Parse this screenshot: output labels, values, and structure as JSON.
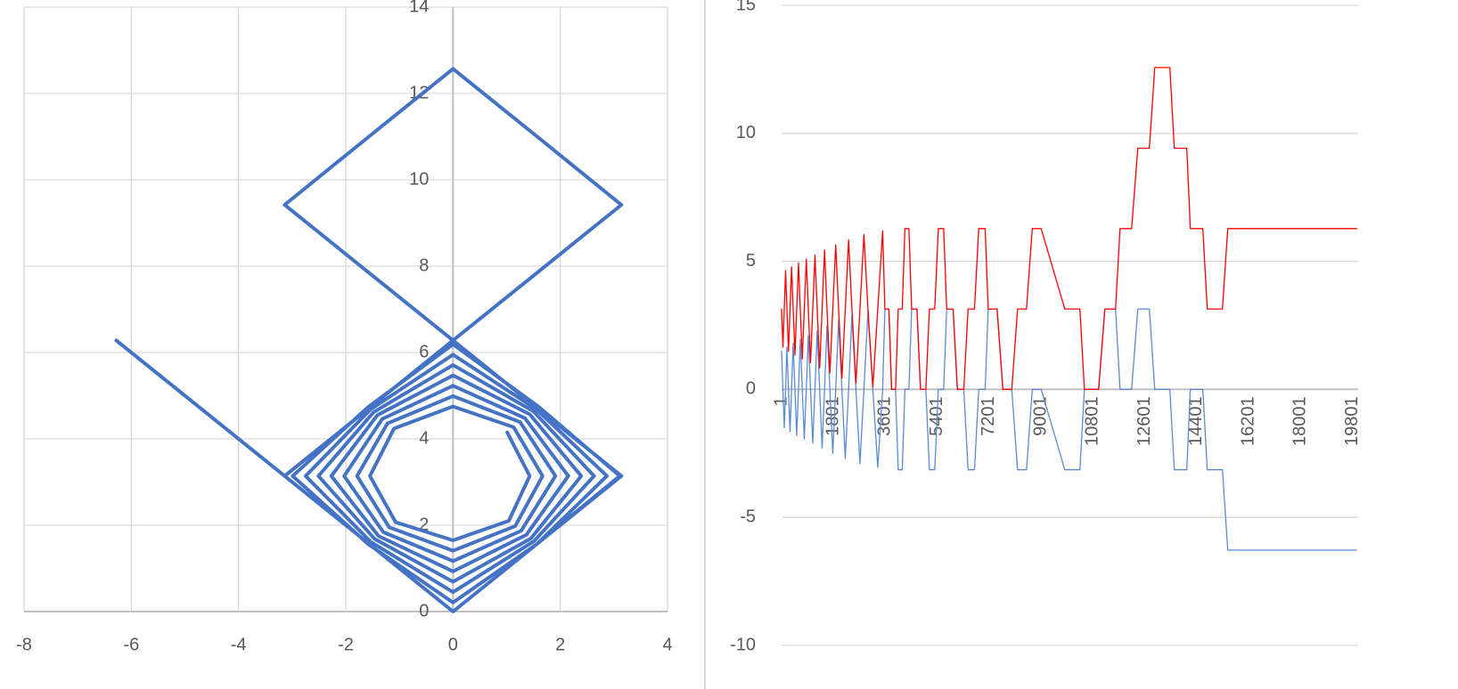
{
  "chart_data": [
    {
      "type": "scatter",
      "x": [
        1.01,
        1.43,
        1.04,
        0,
        -1.07,
        -1.55,
        -1.1,
        0,
        1.13,
        1.67,
        1.16,
        0,
        -1.19,
        -1.79,
        -1.22,
        0,
        1.25,
        1.91,
        1.27,
        0,
        -1.3,
        -2.03,
        -1.32,
        0,
        1.34,
        2.15,
        1.37,
        0,
        -1.39,
        -2.27,
        -1.41,
        0,
        1.43,
        2.39,
        1.45,
        0,
        -1.46,
        -2.51,
        -1.48,
        0,
        1.5,
        2.63,
        1.51,
        0,
        -1.53,
        -2.75,
        -1.54,
        0,
        1.55,
        2.87,
        1.57,
        0,
        -1.58,
        -2.99,
        -1.59,
        0,
        1.6,
        3.11,
        1.57,
        0,
        -1.57,
        -3.14,
        -1.57,
        0,
        1.57,
        3.14,
        1.57,
        0,
        -1.57,
        -3.14,
        -1.57,
        0,
        1.57,
        3.14,
        1.57,
        0,
        -1.57,
        -3.14,
        -4.71,
        -6.28
      ],
      "series": [
        {
          "color": "#4472c4",
          "values": [
            4.15,
            3.14,
            2.1,
            1.65,
            2.07,
            3.14,
            4.24,
            4.75,
            4.27,
            3.14,
            1.98,
            1.41,
            1.95,
            3.14,
            4.36,
            4.99,
            4.39,
            3.14,
            1.87,
            1.17,
            1.84,
            3.14,
            4.46,
            5.23,
            4.48,
            3.14,
            1.78,
            0.93,
            1.75,
            3.14,
            4.55,
            5.47,
            4.57,
            3.14,
            1.69,
            0.69,
            1.68,
            3.14,
            4.62,
            5.71,
            4.64,
            3.14,
            1.63,
            0.45,
            1.61,
            3.14,
            4.68,
            5.95,
            4.69,
            3.14,
            1.57,
            0.21,
            1.56,
            3.14,
            4.73,
            6.19,
            4.74,
            3.14,
            1.57,
            0,
            1.57,
            3.14,
            4.71,
            6.28,
            7.85,
            9.42,
            11,
            12.57,
            11,
            9.42,
            7.85,
            6.28,
            4.71,
            3.14,
            1.57,
            0,
            1.57,
            3.14,
            4.71,
            6.28
          ]
        }
      ],
      "xlim": [
        -8,
        4
      ],
      "xticks": [
        -8,
        -6,
        -4,
        -2,
        0,
        2,
        4
      ],
      "ylim": [
        0,
        14
      ],
      "yticks": [
        0,
        2,
        4,
        6,
        8,
        10,
        12,
        14
      ],
      "grid": true
    },
    {
      "type": "line",
      "x": [
        1,
        47,
        94,
        140,
        186,
        240,
        294,
        348,
        403,
        464,
        526,
        588,
        650,
        719,
        789,
        858,
        928,
        1005,
        1082,
        1159,
        1237,
        1322,
        1407,
        1492,
        1576,
        1677,
        1777,
        1878,
        1978,
        2094,
        2210,
        2326,
        2441,
        2580,
        2719,
        2858,
        2997,
        3167,
        3337,
        3507,
        3584,
        3723,
        3816,
        3955,
        4047,
        4186,
        4279,
        4418,
        4511,
        4696,
        4820,
        5005,
        5129,
        5314,
        5437,
        5623,
        5728,
        5950,
        6099,
        6321,
        6470,
        6692,
        6840,
        7063,
        7167,
        7476,
        7677,
        7986,
        8187,
        8496,
        8697,
        9005,
        9824,
        10349,
        10504,
        10998,
        11214,
        11585,
        11740,
        12142,
        12357,
        12759,
        12944,
        13469,
        13623,
        14056,
        14179,
        14612,
        14766,
        15292,
        15477,
        19950
      ],
      "series": [
        {
          "color": "#5b8bd4",
          "values": [
            1.5,
            0,
            -1.5,
            0,
            1.65,
            0,
            -1.65,
            0,
            1.8,
            0,
            -1.8,
            0,
            1.95,
            0,
            -1.95,
            0,
            2.1,
            0,
            -2.1,
            0,
            2.3,
            0,
            -2.3,
            0,
            2.5,
            0,
            -2.5,
            0,
            2.7,
            0,
            -2.7,
            0,
            2.9,
            0,
            -2.9,
            0,
            3.05,
            0,
            -3.05,
            0,
            3.14,
            3.14,
            0,
            0,
            -3.14,
            -3.14,
            0,
            0,
            3.14,
            3.14,
            0,
            0,
            -3.14,
            -3.14,
            0,
            0,
            3.14,
            3.14,
            0,
            0,
            -3.14,
            -3.14,
            0,
            0,
            3.14,
            3.14,
            0,
            0,
            -3.14,
            -3.14,
            0,
            0,
            -3.14,
            -3.14,
            0,
            0,
            3.14,
            3.14,
            0,
            0,
            3.14,
            3.14,
            0,
            0,
            -3.14,
            -3.14,
            0,
            0,
            -3.14,
            -3.14,
            -6.28,
            -6.28
          ]
        },
        {
          "color": "#ff0000",
          "values": [
            3.14,
            1.64,
            3.14,
            4.64,
            3.14,
            1.49,
            3.14,
            4.79,
            3.14,
            1.34,
            3.14,
            4.94,
            3.14,
            1.19,
            3.14,
            5.09,
            3.14,
            1.04,
            3.14,
            5.24,
            3.14,
            0.84,
            3.14,
            5.44,
            3.14,
            0.64,
            3.14,
            5.64,
            3.14,
            0.44,
            3.14,
            5.84,
            3.14,
            0.24,
            3.14,
            6.04,
            3.14,
            0.09,
            3.14,
            6.19,
            3.14,
            3.14,
            0,
            0,
            3.14,
            3.14,
            6.28,
            6.28,
            3.14,
            3.14,
            0,
            0,
            3.14,
            3.14,
            6.28,
            6.28,
            3.14,
            3.14,
            0,
            0,
            3.14,
            3.14,
            6.28,
            6.28,
            3.14,
            3.14,
            0,
            0,
            3.14,
            3.14,
            6.28,
            6.28,
            3.14,
            3.14,
            0,
            0,
            3.14,
            3.14,
            6.28,
            6.28,
            9.42,
            9.42,
            12.57,
            12.57,
            9.42,
            9.42,
            6.28,
            6.28,
            3.14,
            3.14,
            6.28,
            6.28
          ]
        }
      ],
      "xlim": [
        1,
        20001
      ],
      "xticks": [
        1,
        1801,
        3601,
        5401,
        7201,
        9001,
        10801,
        12601,
        14401,
        16201,
        18001,
        19801
      ],
      "ylim": [
        -10,
        15
      ],
      "yticks": [
        -10,
        -5,
        0,
        5,
        10,
        15
      ],
      "grid": true
    }
  ]
}
